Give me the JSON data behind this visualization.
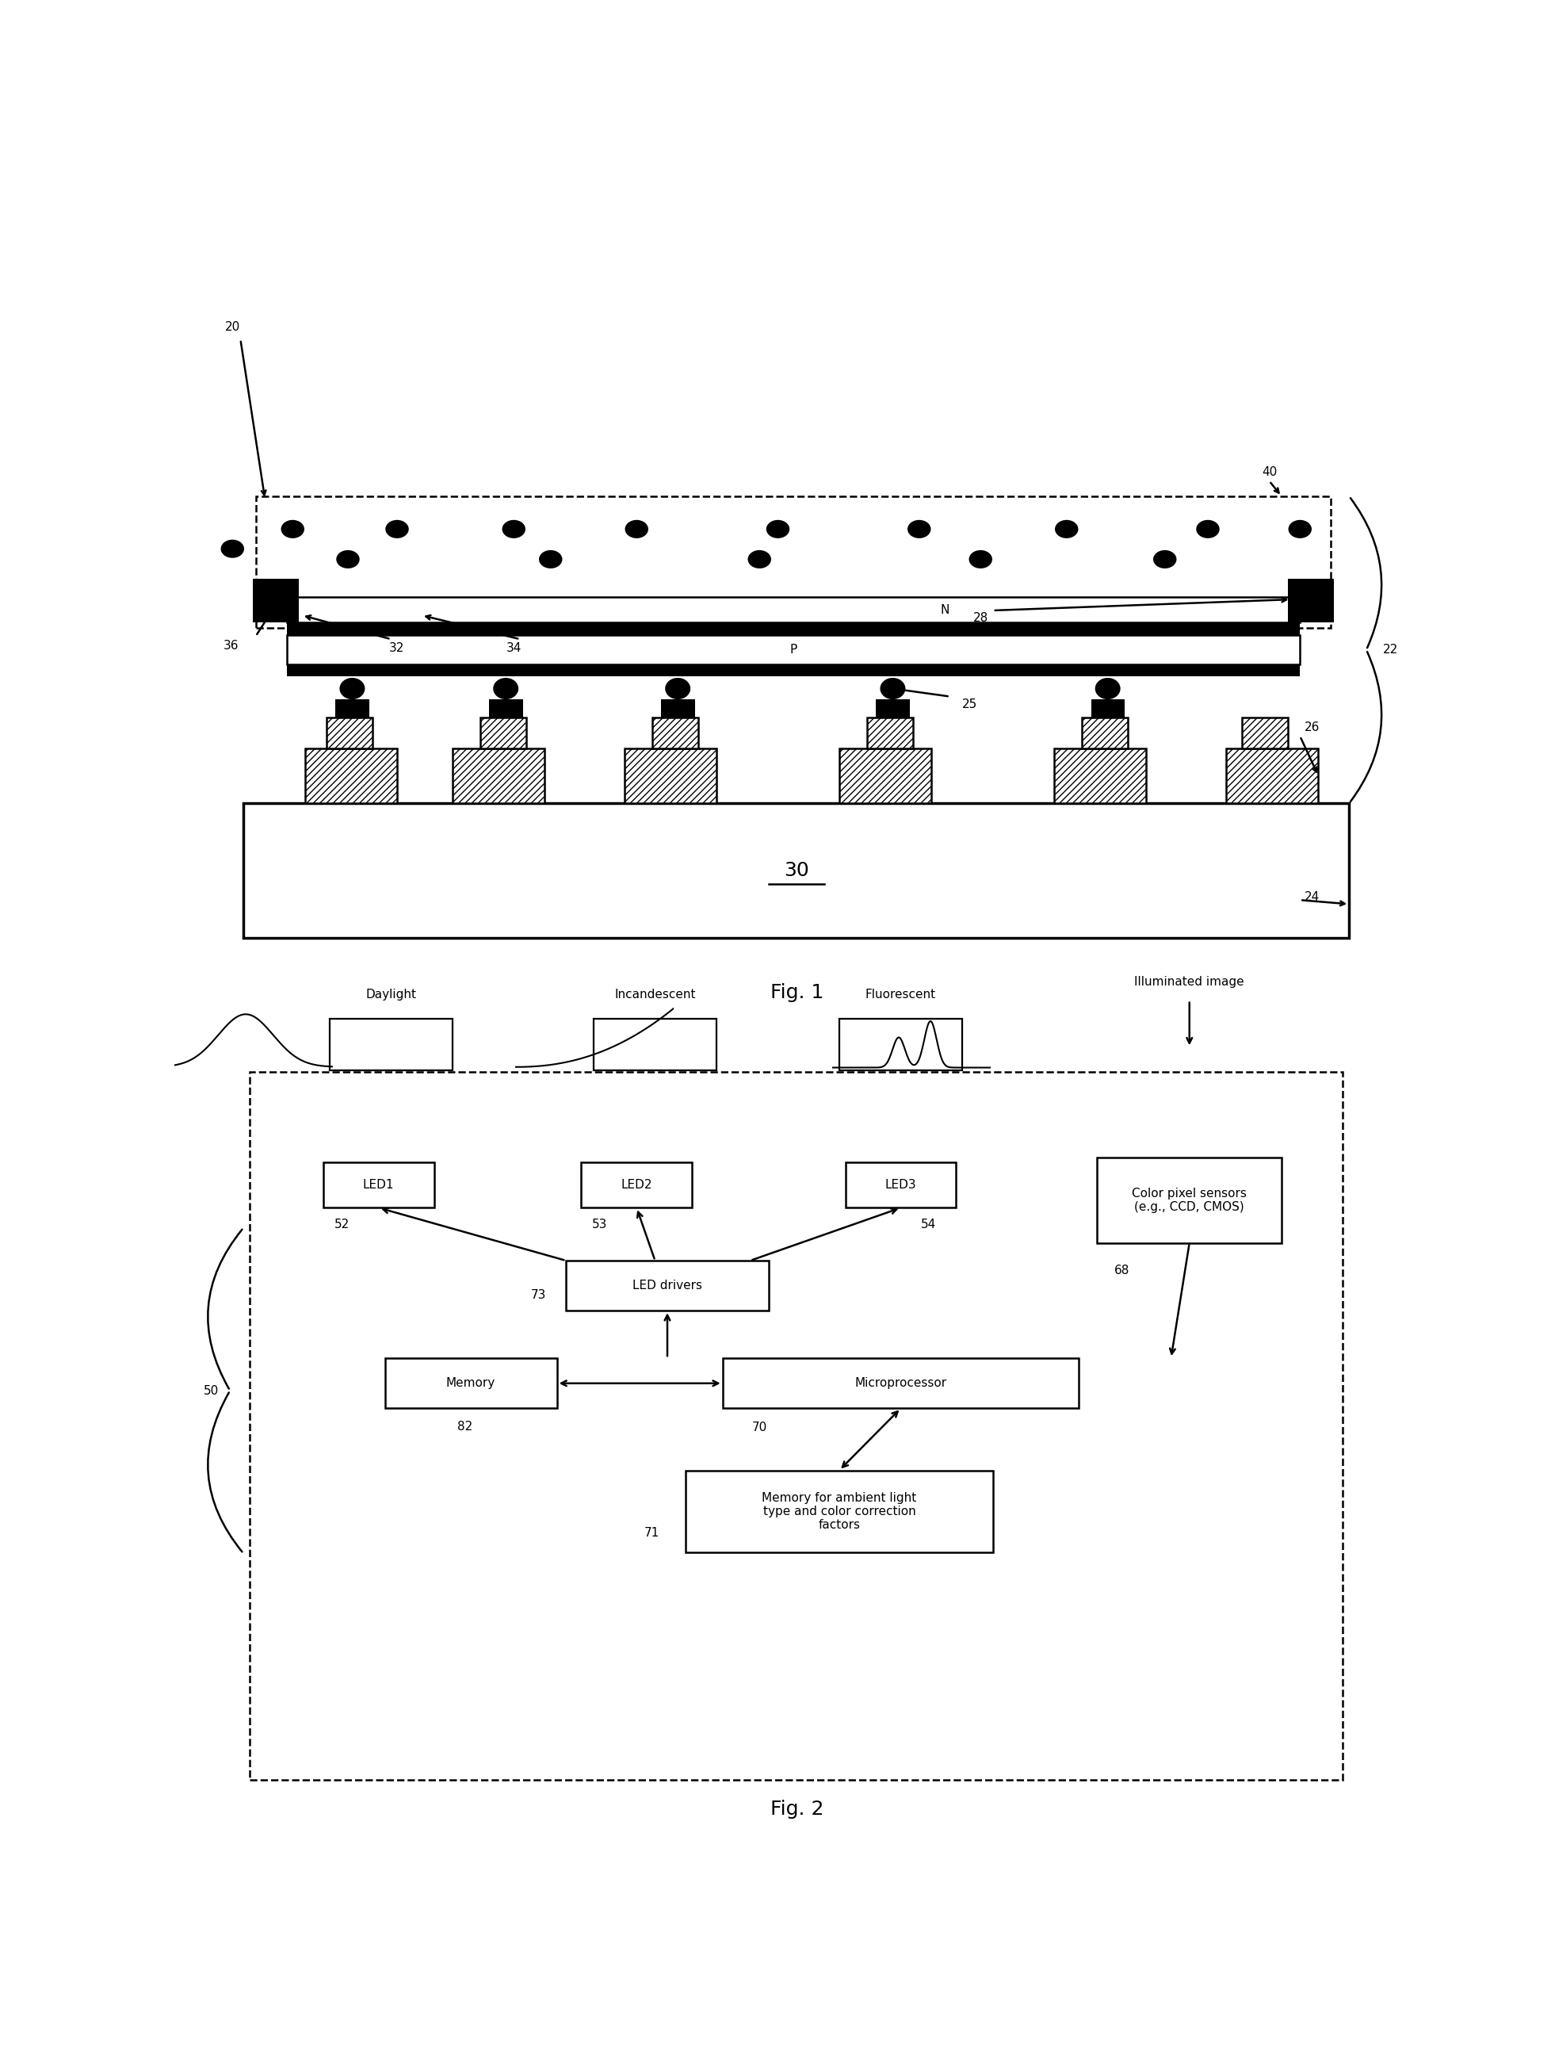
{
  "fig_width": 19.62,
  "fig_height": 25.92,
  "bg_color": "#ffffff",
  "fig1_label": "Fig. 1",
  "fig2_label": "Fig. 2",
  "label_20": "20",
  "label_22": "22",
  "label_24": "24",
  "label_25": "25",
  "label_26": "26",
  "label_28": "28",
  "label_30": "30",
  "label_32": "32",
  "label_34": "34",
  "label_36": "36",
  "label_40": "40",
  "label_N": "N",
  "label_P": "P",
  "label_50": "50",
  "label_52": "52",
  "label_53": "53",
  "label_54": "54",
  "label_68": "68",
  "label_70": "70",
  "label_71": "71",
  "label_73": "73",
  "label_82": "82",
  "label_LED1": "LED1",
  "label_LED2": "LED2",
  "label_LED3": "LED3",
  "label_LED_drivers": "LED drivers",
  "label_Memory": "Memory",
  "label_Microprocessor": "Microprocessor",
  "label_Memory_ambient": "Memory for ambient light\ntype and color correction\nfactors",
  "label_Color_pixel": "Color pixel sensors\n(e.g., CCD, CMOS)",
  "label_Daylight": "Daylight",
  "label_Incandescent": "Incandescent",
  "label_Fluorescent": "Fluorescent",
  "label_Illuminated_image": "Illuminated image"
}
